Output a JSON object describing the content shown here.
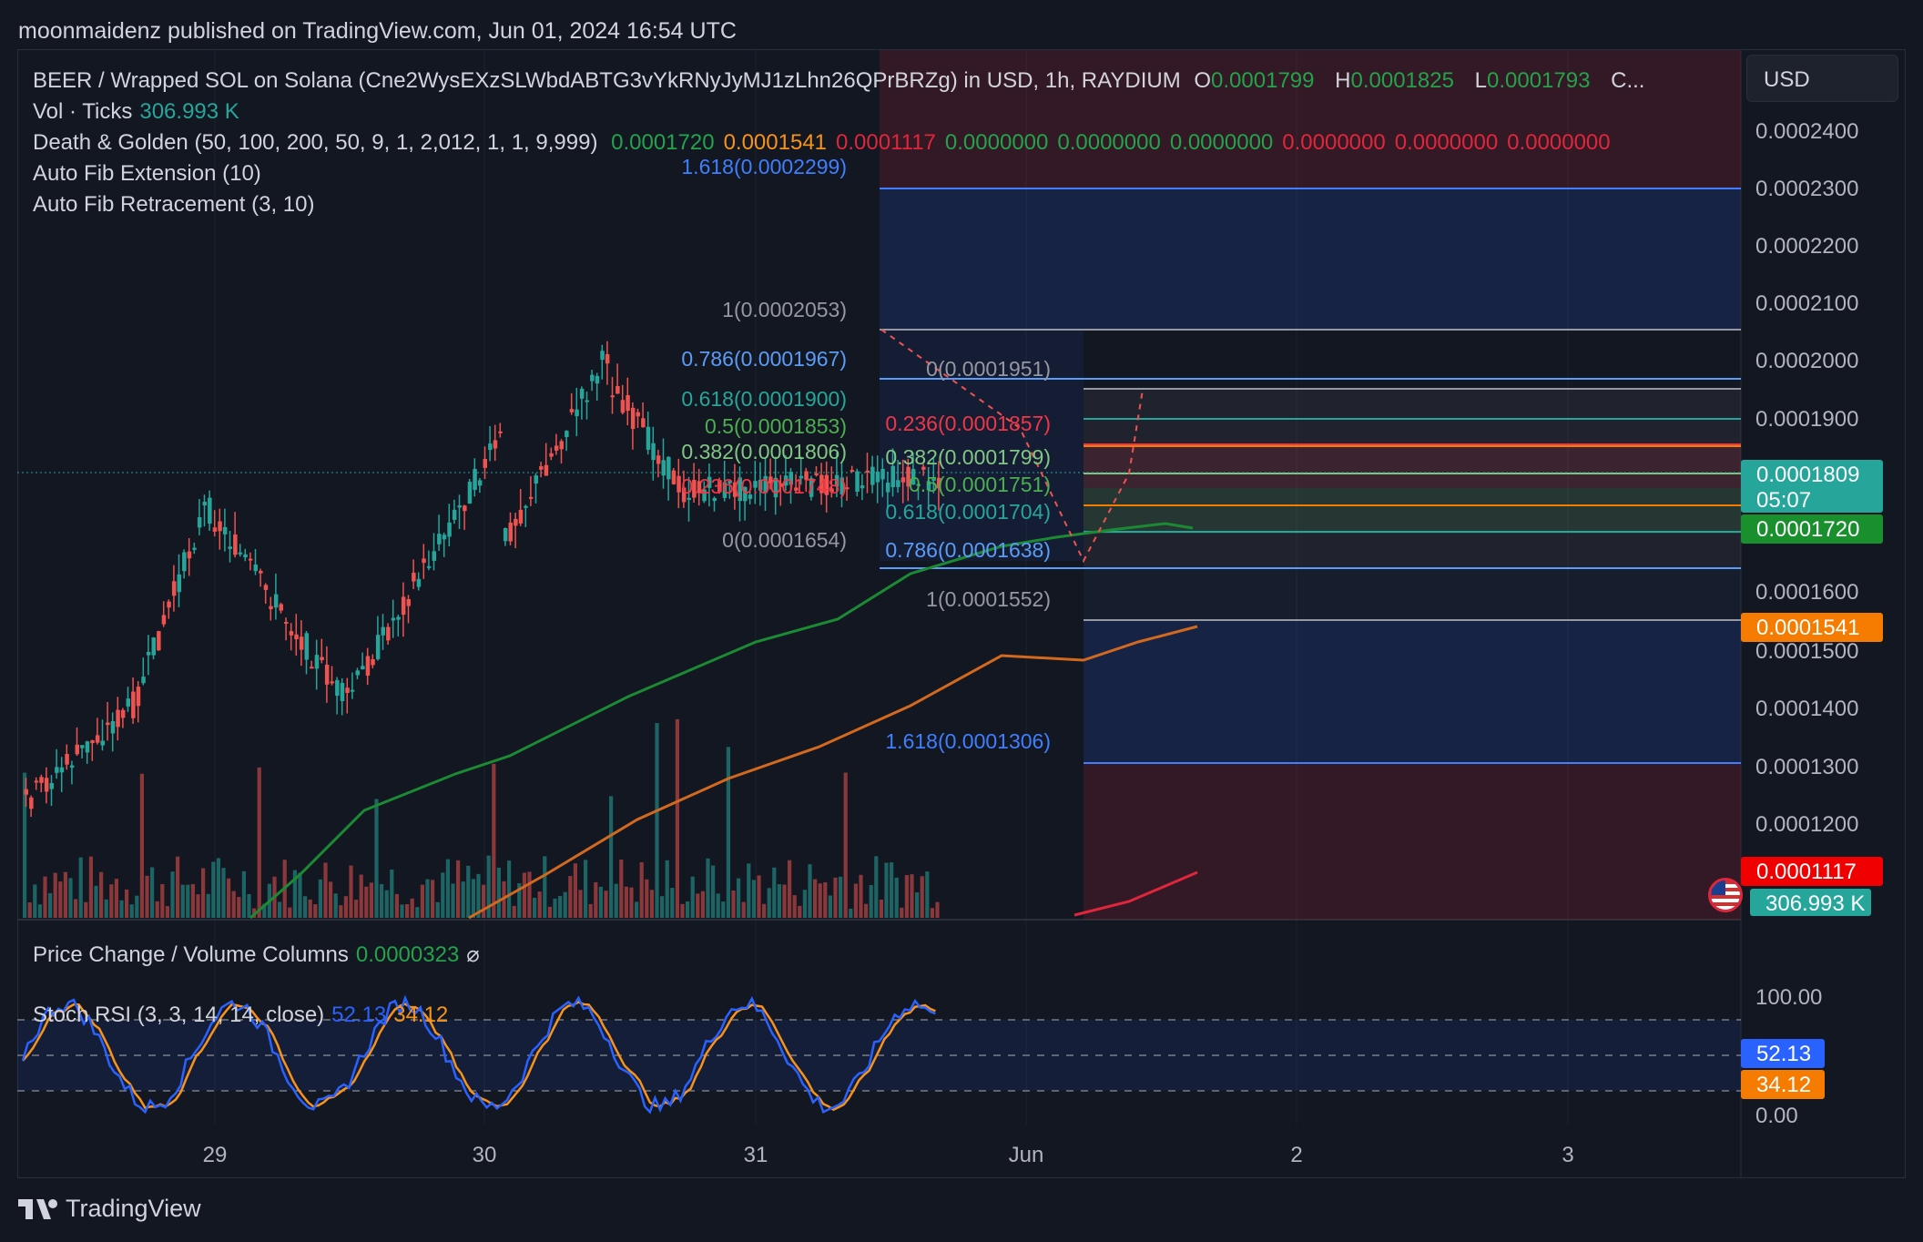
{
  "header": {
    "published": "moonmaidenz published on TradingView.com, Jun 01, 2024 16:54 UTC"
  },
  "legend": {
    "symbol": "BEER / Wrapped SOL on Solana (Cne2WysEXzSLWbdABTG3vYkRNyJyMJ1zLhn26QPrBRZg) in USD, 1h, RAYDIUM",
    "o_label": "O",
    "o": "0.0001799",
    "h_label": "H",
    "h": "0.0001825",
    "l_label": "L",
    "l": "0.0001793",
    "c_label": "C...",
    "vol_label": "Vol · Ticks",
    "vol": "306.993 K",
    "dg_label": "Death & Golden (50, 100, 200, 50, 9, 1, 2,012, 1, 1, 9,999)",
    "dg_values": [
      "0.0001720",
      "0.0001541",
      "0.0001117",
      "0.0000000",
      "0.0000000",
      "0.0000000",
      "0.0000000",
      "0.0000000",
      "0.0000000"
    ],
    "dg_colors": [
      "#23a34a",
      "#f7931a",
      "#e0263b",
      "#23a34a",
      "#23a34a",
      "#23a34a",
      "#e0263b",
      "#e0263b",
      "#e0263b"
    ],
    "fib_ext": "Auto Fib Extension (10)",
    "fib_ret": "Auto Fib Retracement (3, 10)",
    "pc_label": "Price Change / Volume Columns",
    "pc_value": "0.0000323",
    "pc_icon": "⌀",
    "rsi_label": "Stoch RSI (3, 3, 14, 14, close)",
    "rsi_k": "52.13",
    "rsi_d": "34.12"
  },
  "currency": "USD",
  "price_axis": [
    "0.0002400",
    "0.0002300",
    "0.0002200",
    "0.0002100",
    "0.0002000",
    "0.0001900",
    "0.0001600",
    "0.0001500",
    "0.0001400",
    "0.0001300",
    "0.0001200"
  ],
  "rsi_axis": [
    "100.00",
    "0.00"
  ],
  "time_axis": [
    "29",
    "30",
    "31",
    "Jun",
    "2",
    "3"
  ],
  "labels": {
    "last_price": "0.0001809",
    "countdown": "05:07",
    "ma50": "0.0001720",
    "ma100": "0.0001541",
    "ma200": "0.0001117",
    "volume": "306.993 K",
    "rsi_k": "52.13",
    "rsi_d": "34.12"
  },
  "fib_ext_levels": [
    {
      "t": "1.618(0.0002299)",
      "c": "#3f7fff"
    },
    {
      "t": "1(0.0002053)",
      "c": "#9598a1"
    },
    {
      "t": "0.786(0.0001967)",
      "c": "#5b9cf6"
    },
    {
      "t": "0.618(0.0001900)",
      "c": "#26a69a"
    },
    {
      "t": "0.5(0.0001853)",
      "c": "#4caf50"
    },
    {
      "t": "0.382(0.0001806)",
      "c": "#81c784"
    },
    {
      "t": "0.236(0.0001748)",
      "c": "#f23645"
    },
    {
      "t": "0(0.0001654)",
      "c": "#9598a1"
    }
  ],
  "fib_ret_levels": [
    {
      "t": "0(0.0001951)",
      "c": "#9598a1"
    },
    {
      "t": "0.236(0.0001857)",
      "c": "#f23645"
    },
    {
      "t": "0.382(0.0001799)",
      "c": "#81c784"
    },
    {
      "t": "0.5(0.0001751)",
      "c": "#4caf50"
    },
    {
      "t": "0.618(0.0001704)",
      "c": "#26a69a"
    },
    {
      "t": "0.786(0.0001638)",
      "c": "#5b9cf6"
    },
    {
      "t": "1(0.0001552)",
      "c": "#9598a1"
    },
    {
      "t": "1.618(0.0001306)",
      "c": "#3f7fff"
    }
  ],
  "colors": {
    "bg": "#131722",
    "up": "#26a69a",
    "down": "#ef5350",
    "ma50": "#1b8a33",
    "ma100": "#d2691e",
    "ma200": "#e0263b",
    "rsi_k": "#2962ff",
    "rsi_d": "#f7931a"
  },
  "footer": {
    "brand": "TradingView",
    "logo_icon": "tradingview-logo-icon"
  },
  "flag_icon": "us-flag-icon"
}
